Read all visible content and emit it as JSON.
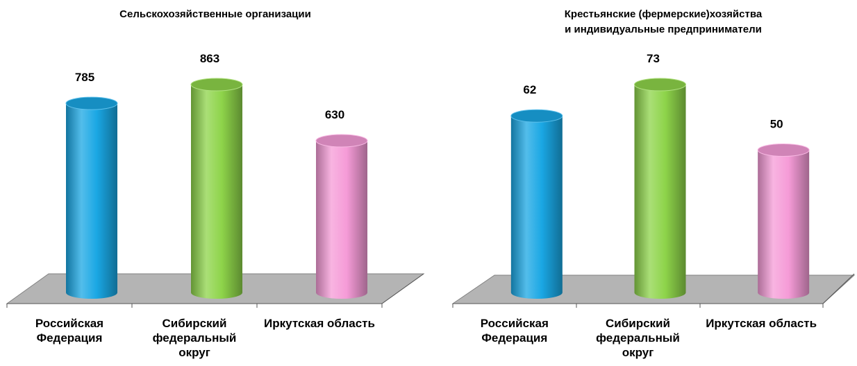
{
  "chart_data": [
    {
      "type": "bar",
      "title": "Сельскохозяйственные организации",
      "categories": [
        "Российская Федерация",
        "Сибирский федеральный округ",
        "Иркутская область"
      ],
      "values": [
        785,
        863,
        630
      ],
      "colors": [
        "#1aa7e4",
        "#8ed44a",
        "#f59bd7"
      ]
    },
    {
      "type": "bar",
      "title": "Крестьянские  (фермерские)хозяйства\nи индивидуальные предприниматели",
      "categories": [
        "Российская Федерация",
        "Сибирский федеральный округ",
        "Иркутская область"
      ],
      "values": [
        62,
        73,
        50
      ],
      "colors": [
        "#1aa7e4",
        "#8ed44a",
        "#f59bd7"
      ]
    }
  ]
}
